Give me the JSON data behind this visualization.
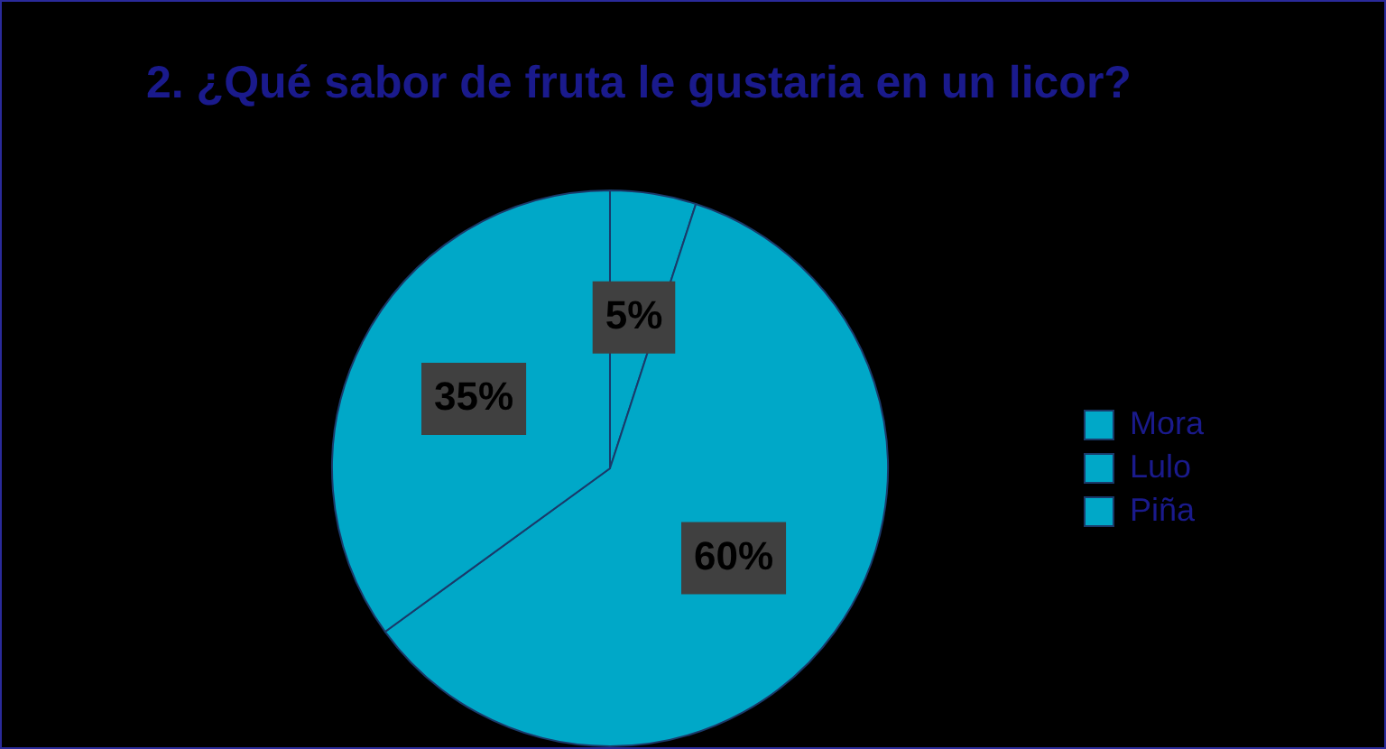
{
  "chart_data": {
    "type": "pie",
    "title": "2. ¿Qué sabor de fruta le gustaria en un licor?",
    "categories": [
      "Mora",
      "Lulo",
      "Piña"
    ],
    "values": [
      5,
      60,
      35
    ],
    "value_labels": [
      "5%",
      "60%",
      "35%"
    ],
    "colors": [
      "#00a8c8",
      "#00a8c8",
      "#00a8c8"
    ],
    "legend": "right"
  }
}
